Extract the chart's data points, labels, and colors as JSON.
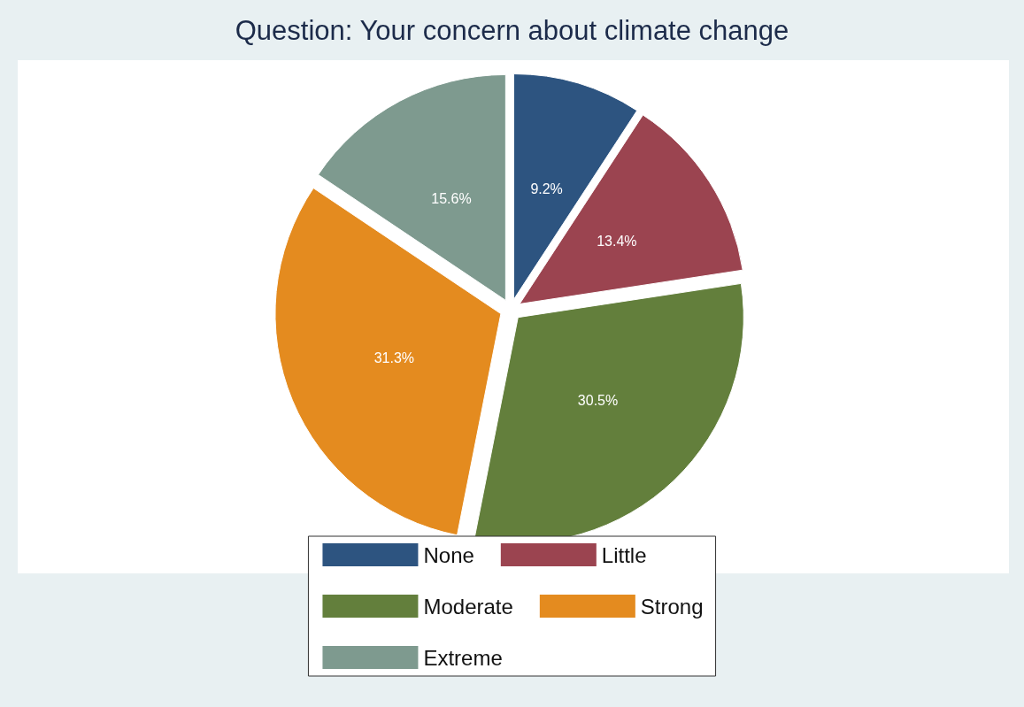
{
  "chart_data": {
    "type": "pie",
    "title": "Question: Your concern about climate change",
    "categories": [
      "None",
      "Little",
      "Moderate",
      "Strong",
      "Extreme"
    ],
    "values": [
      9.2,
      13.4,
      30.5,
      31.3,
      15.6
    ],
    "value_labels": [
      "9.2%",
      "13.4%",
      "30.5%",
      "31.3%",
      "15.6%"
    ],
    "colors": [
      "#2d5480",
      "#9b4450",
      "#637f3c",
      "#e48b1f",
      "#7e9a8f"
    ],
    "legend": "bottom"
  }
}
